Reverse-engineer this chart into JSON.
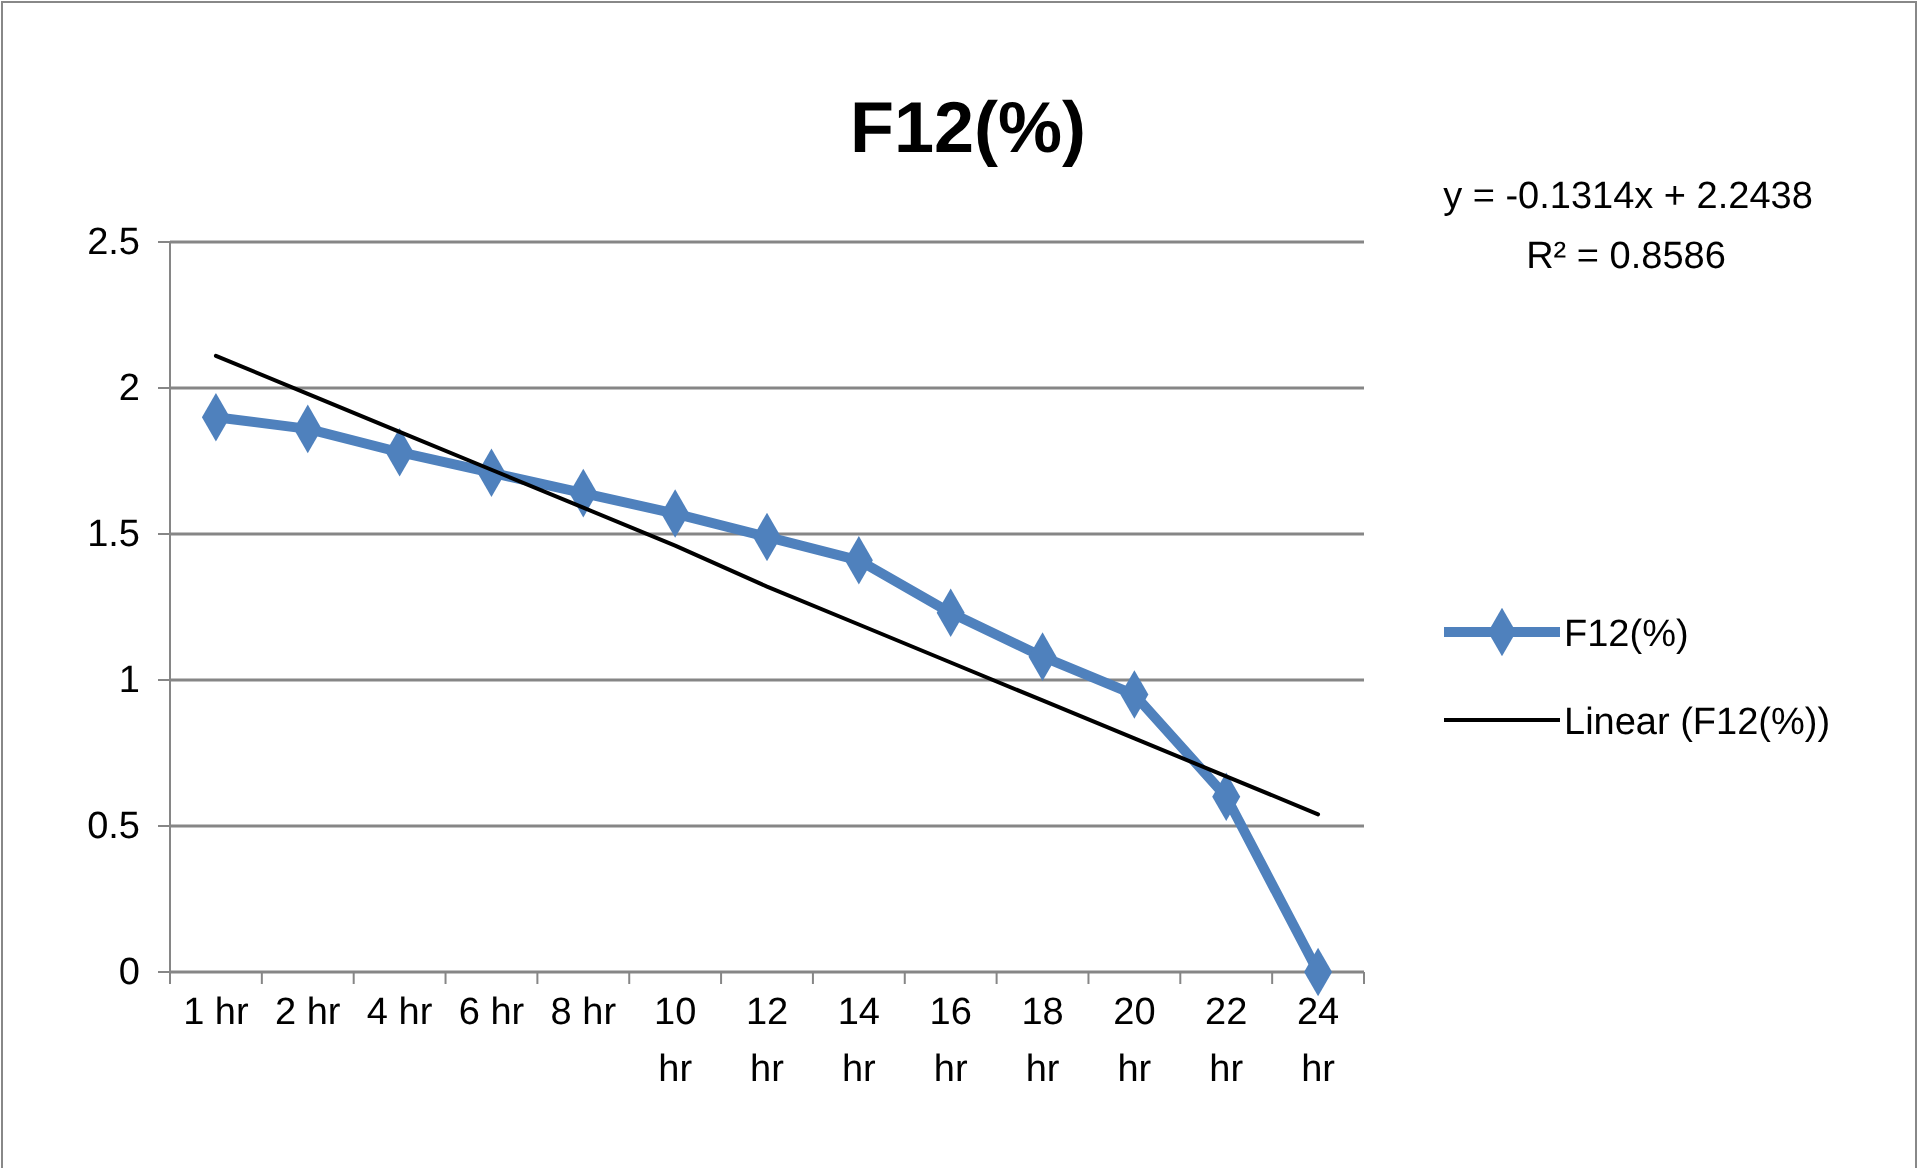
{
  "chart_data": {
    "type": "line",
    "title": "F12(%)",
    "categories": [
      "1 hr",
      "2 hr",
      "4 hr",
      "6 hr",
      "8 hr",
      "10 hr",
      "12 hr",
      "14 hr",
      "16 hr",
      "18 hr",
      "20 hr",
      "22 hr",
      "24 hr"
    ],
    "series": [
      {
        "name": "F12(%)",
        "color": "#4f81bd",
        "marker": "diamond",
        "values": [
          1.9,
          1.86,
          1.78,
          1.71,
          1.64,
          1.57,
          1.49,
          1.41,
          1.23,
          1.08,
          0.95,
          0.6,
          0
        ]
      },
      {
        "name": "Linear (F12(%))",
        "color": "#000000",
        "marker": "none",
        "values": [
          2.11,
          1.98,
          1.85,
          1.72,
          1.59,
          1.46,
          1.32,
          1.19,
          1.06,
          0.93,
          0.8,
          0.67,
          0.54
        ]
      }
    ],
    "ylim": [
      0,
      2.5
    ],
    "yticks": [
      0,
      0.5,
      1,
      1.5,
      2,
      2.5
    ],
    "grid": "y",
    "legend": "right",
    "annotations": [
      "y = -0.1314x + 2.2438",
      "R² = 0.8586"
    ]
  }
}
